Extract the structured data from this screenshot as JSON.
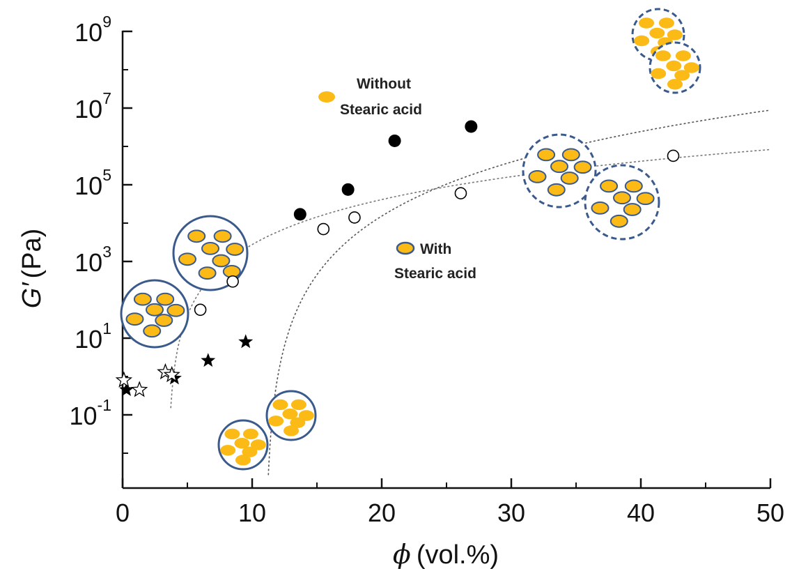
{
  "chart_data": {
    "type": "scatter",
    "xlabel": {
      "symbol": "ϕ",
      "unit": "(vol.%)"
    },
    "ylabel": {
      "symbol": "G′",
      "unit": "(Pa)"
    },
    "xlim": [
      0,
      50
    ],
    "ylim_log10": [
      -2.6,
      9
    ],
    "y_scale": "log",
    "x_ticks": [
      "0",
      "10",
      "20",
      "30",
      "40",
      "50"
    ],
    "y_ticks": [
      {
        "base": "10",
        "exp": "9",
        "value": 1000000000.0
      },
      {
        "base": "10",
        "exp": "7",
        "value": 10000000.0
      },
      {
        "base": "10",
        "exp": "5",
        "value": 100000.0
      },
      {
        "base": "10",
        "exp": "3",
        "value": 1000.0
      },
      {
        "base": "10",
        "exp": "1",
        "value": 10
      },
      {
        "base": "10",
        "exp": "-1",
        "value": 0.1
      }
    ],
    "series": [
      {
        "name": "Without Stearic acid",
        "marker": "filled-circle",
        "points": [
          [
            13.7,
            17000
          ],
          [
            17.4,
            75000
          ],
          [
            21.0,
            1400000
          ],
          [
            26.9,
            3300000
          ]
        ]
      },
      {
        "name": "With Stearic acid",
        "marker": "open-circle",
        "points": [
          [
            6.0,
            55
          ],
          [
            8.5,
            300
          ],
          [
            15.5,
            7000
          ],
          [
            17.9,
            14000
          ],
          [
            26.1,
            60000
          ],
          [
            42.5,
            570000
          ]
        ]
      },
      {
        "marker": "filled-star",
        "points": [
          [
            0.3,
            0.45
          ],
          [
            4.0,
            0.9
          ],
          [
            6.6,
            2.6
          ],
          [
            9.5,
            8.0
          ]
        ]
      },
      {
        "marker": "open-star",
        "points": [
          [
            0.1,
            0.8
          ],
          [
            1.3,
            0.45
          ],
          [
            3.3,
            1.3
          ],
          [
            3.8,
            1.1
          ]
        ]
      }
    ],
    "fits": [
      {
        "style": "dotted",
        "color": "#555555",
        "model": "G = A * (x - x0)^n",
        "A": 1.1,
        "x0": 11.0,
        "n": 4.34,
        "x_range": [
          11.25,
          50
        ]
      },
      {
        "style": "dotted",
        "color": "#777777",
        "model": "G = A * (x - x0)^n",
        "A": 12.1,
        "x0": 3.5,
        "n": 2.9,
        "x_range": [
          3.72,
          50
        ]
      }
    ],
    "legend": [
      {
        "text_line1": "Without",
        "text_line2": "Stearic acid",
        "marker": "yellow-ellipse"
      },
      {
        "text_line1": "With",
        "text_line2": "Stearic acid",
        "marker": "yellow-ellipse-blue-outline"
      }
    ],
    "colors": {
      "particle_fill": "#FBBA16",
      "particle_outline": "#3B5A8C",
      "cluster_outline": "#3B5A8C",
      "data_marker": "#000000"
    }
  }
}
